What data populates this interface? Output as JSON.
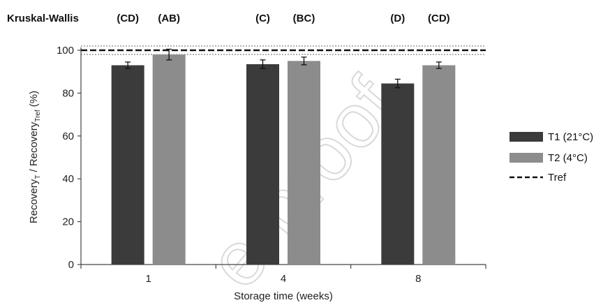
{
  "chart_data": {
    "type": "bar",
    "title": "",
    "xlabel": "Storage time (weeks)",
    "ylabel_main": "Recovery",
    "ylabel_sub1": "T",
    "ylabel_mid": " / Recovery",
    "ylabel_sub2": "Tref",
    "ylabel_end": " (%)",
    "categories": [
      "1",
      "4",
      "8"
    ],
    "ylim": [
      0,
      100
    ],
    "yticks": [
      0,
      20,
      40,
      60,
      80,
      100
    ],
    "grid": false,
    "legend_position": "right",
    "series": [
      {
        "name": "T1 (21°C)",
        "color": "#3b3b3b",
        "values": [
          93,
          93.5,
          84.5
        ],
        "errors": [
          1.5,
          2,
          2
        ]
      },
      {
        "name": "T2 (4°C)",
        "color": "#8c8c8c",
        "values": [
          98,
          95,
          93
        ],
        "errors": [
          2.5,
          1.8,
          1.5
        ]
      }
    ],
    "reference": {
      "name": "Tref",
      "value": 100,
      "band": [
        98,
        102
      ]
    },
    "group_label": "Kruskal-Wallis",
    "group_letters": [
      [
        "(CD)",
        "(AB)"
      ],
      [
        "(C)",
        "(BC)"
      ],
      [
        "(D)",
        "(CD)"
      ]
    ]
  },
  "watermark": "e-proof"
}
